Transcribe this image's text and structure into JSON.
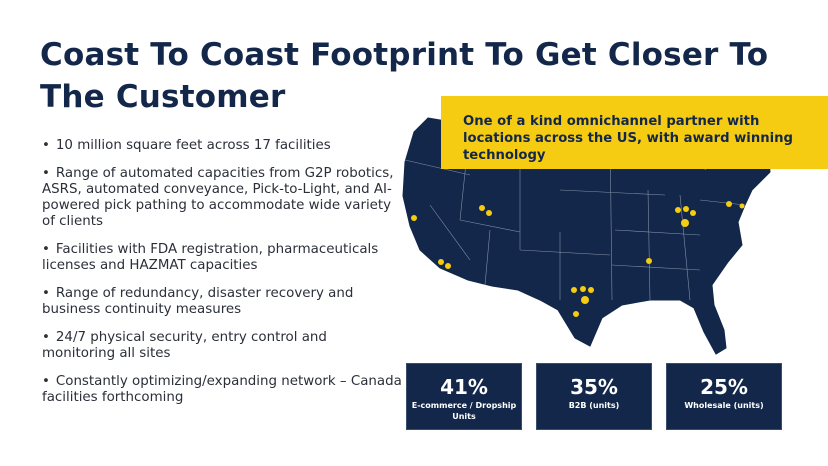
{
  "title": "Coast To Coast Footprint To Get Closer To The Customer",
  "bullets": [
    "10 million square feet across 17 facilities",
    "Range of automated capacities from G2P robotics, ASRS, automated conveyance, Pick-to-Light, and AI-powered pick pathing to accommodate wide variety of clients",
    "Facilities with FDA registration, pharmaceuticals licenses and HAZMAT capacities",
    "Range of redundancy, disaster recovery and business continuity measures",
    "24/7 physical security, entry control and monitoring all sites",
    "Constantly optimizing/expanding network – Canada facilities forthcoming"
  ],
  "callout": "One of a kind omnichannel partner with locations across the US, with award winning technology",
  "stats": [
    {
      "value": "41%",
      "label": "E-commerce / Dropship Units"
    },
    {
      "value": "35%",
      "label": "B2B (units)"
    },
    {
      "value": "25%",
      "label": "Wholesale (units)"
    }
  ],
  "colors": {
    "navy": "#13274a",
    "yellow": "#f6cc12"
  }
}
